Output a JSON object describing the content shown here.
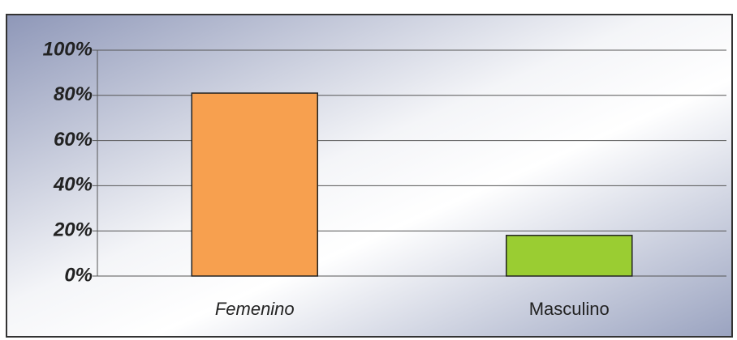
{
  "chart_data": {
    "type": "bar",
    "categories": [
      "Femenino",
      "Masculino"
    ],
    "values": [
      81,
      18
    ],
    "colors": [
      "#f7a04f",
      "#9acd32"
    ],
    "ylim": [
      0,
      100
    ],
    "yticks": [
      {
        "value": 0,
        "label": "0%"
      },
      {
        "value": 20,
        "label": "20%"
      },
      {
        "value": 40,
        "label": "40%"
      },
      {
        "value": 60,
        "label": "60%"
      },
      {
        "value": 80,
        "label": "80%"
      },
      {
        "value": 100,
        "label": "100%"
      }
    ],
    "grid": true
  }
}
